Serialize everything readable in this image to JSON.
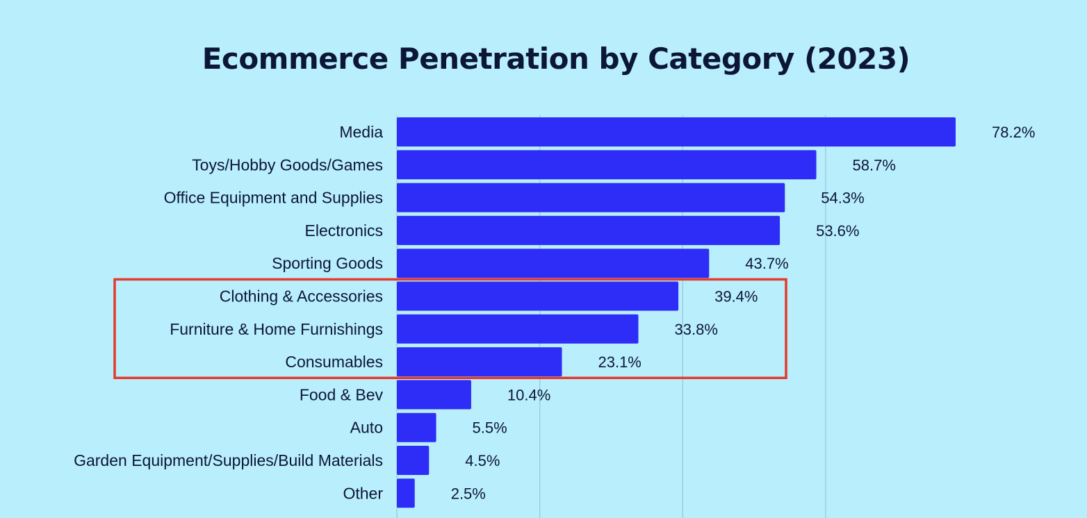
{
  "chart_data": {
    "type": "bar",
    "orientation": "horizontal",
    "title": "Ecommerce Penetration by Category (2023)",
    "categories": [
      "Media",
      "Toys/Hobby Goods/Games",
      "Office Equipment and Supplies",
      "Electronics",
      "Sporting Goods",
      "Clothing & Accessories",
      "Furniture & Home Furnishings",
      "Consumables",
      "Food & Bev",
      "Auto",
      "Garden Equipment/Supplies/Build Materials",
      "Other"
    ],
    "values": [
      78.2,
      58.7,
      54.3,
      53.6,
      43.7,
      39.4,
      33.8,
      23.1,
      10.4,
      5.5,
      4.5,
      2.5
    ],
    "value_labels": [
      "78.2%",
      "58.7%",
      "54.3%",
      "53.6%",
      "43.7%",
      "39.4%",
      "33.8%",
      "23.1%",
      "10.4%",
      "5.5%",
      "4.5%",
      "2.5%"
    ],
    "xlim": [
      0,
      100
    ],
    "grid": true,
    "highlight_range": [
      "Clothing & Accessories",
      "Consumables"
    ],
    "colors": {
      "background": "#b9eefc",
      "bar": "#2d2df7",
      "text": "#0c1637",
      "grid": "#96c6d6",
      "highlight": "#e53a2c"
    }
  }
}
